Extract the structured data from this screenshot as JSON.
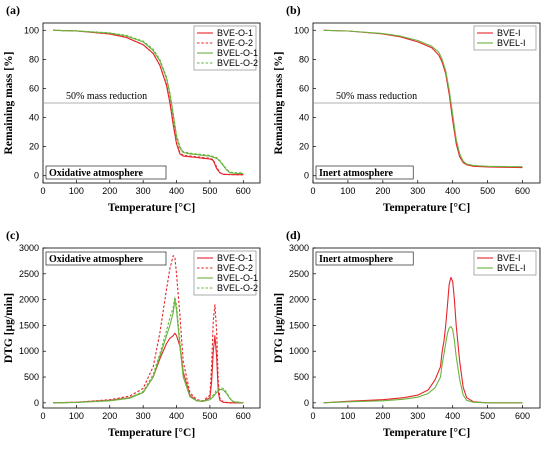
{
  "colors": {
    "red": "#e8242b",
    "green": "#6ab33f",
    "axis": "#000000",
    "refline": "#999999"
  },
  "chart_data": [
    {
      "type": "line",
      "panel_label": "(a)",
      "xlabel": "Temperature [°C]",
      "ylabel": "Remaining mass [%]",
      "xlim": [
        0,
        650
      ],
      "ylim": [
        -5,
        105
      ],
      "xticks": [
        0,
        100,
        200,
        300,
        400,
        500,
        600
      ],
      "yticks": [
        0,
        20,
        40,
        60,
        80,
        100
      ],
      "grid": false,
      "legend_position": "top-right",
      "box_label": "Oxidative atmosphere",
      "hline": {
        "y": 50,
        "label": "50% mass reduction"
      },
      "series": [
        {
          "name": "BVE-O-1",
          "color": "red",
          "dash": "solid",
          "x": [
            30,
            100,
            200,
            250,
            300,
            330,
            350,
            370,
            380,
            390,
            400,
            410,
            420,
            440,
            460,
            480,
            500,
            510,
            520,
            530,
            540,
            560,
            580,
            600
          ],
          "y": [
            100,
            99.6,
            97.5,
            95,
            90,
            84,
            76,
            62,
            50,
            35,
            22,
            15,
            13.5,
            13,
            12.5,
            12,
            11.5,
            10.5,
            5,
            2,
            1,
            0.8,
            0.7,
            0.7
          ]
        },
        {
          "name": "BVE-O-2",
          "color": "red",
          "dash": "dashed",
          "x": [
            30,
            100,
            200,
            250,
            300,
            330,
            350,
            370,
            380,
            390,
            400,
            410,
            420,
            440,
            460,
            480,
            500,
            510,
            520,
            530,
            540,
            560,
            580,
            600
          ],
          "y": [
            100,
            99.6,
            97.5,
            95,
            90,
            84,
            76,
            63,
            51,
            37,
            23,
            16,
            14,
            13.5,
            13,
            12.5,
            12,
            11,
            6,
            2,
            1,
            0.8,
            0.7,
            0.7
          ]
        },
        {
          "name": "BVEL-O-1",
          "color": "green",
          "dash": "solid",
          "x": [
            30,
            100,
            200,
            250,
            300,
            330,
            350,
            370,
            380,
            390,
            400,
            410,
            420,
            440,
            460,
            480,
            500,
            520,
            530,
            540,
            550,
            560,
            580,
            600
          ],
          "y": [
            100,
            99.6,
            98,
            96,
            92,
            86,
            79,
            67,
            56,
            42,
            27,
            19,
            16,
            15,
            14.5,
            14,
            13.5,
            12,
            10,
            7,
            4,
            2,
            1.5,
            1.5
          ]
        },
        {
          "name": "BVEL-O-2",
          "color": "green",
          "dash": "dashed",
          "x": [
            30,
            100,
            200,
            250,
            300,
            330,
            350,
            370,
            380,
            390,
            400,
            410,
            420,
            440,
            460,
            480,
            500,
            520,
            530,
            540,
            550,
            560,
            580,
            600
          ],
          "y": [
            100,
            99.6,
            98.2,
            96.5,
            92.5,
            87,
            80,
            68,
            57,
            43,
            28,
            20,
            16.5,
            15.5,
            15,
            14.5,
            14,
            12.5,
            10.5,
            7.5,
            4.5,
            2.5,
            2,
            2
          ]
        }
      ]
    },
    {
      "type": "line",
      "panel_label": "(b)",
      "xlabel": "Temperature [°C]",
      "ylabel": "Remaining mass [%]",
      "xlim": [
        0,
        650
      ],
      "ylim": [
        -5,
        105
      ],
      "xticks": [
        0,
        100,
        200,
        300,
        400,
        500,
        600
      ],
      "yticks": [
        0,
        20,
        40,
        60,
        80,
        100
      ],
      "grid": false,
      "legend_position": "top-right",
      "box_label": "Inert atmosphere",
      "hline": {
        "y": 50,
        "label": "50% mass reduction"
      },
      "series": [
        {
          "name": "BVE-I",
          "color": "red",
          "dash": "solid",
          "x": [
            30,
            100,
            200,
            250,
            300,
            340,
            360,
            370,
            380,
            390,
            400,
            410,
            420,
            430,
            440,
            460,
            500,
            550,
            600
          ],
          "y": [
            100,
            99.5,
            97.5,
            95.5,
            92,
            88,
            83,
            78,
            70,
            56,
            38,
            22,
            13,
            9,
            7.5,
            6.5,
            6,
            5.8,
            5.6
          ]
        },
        {
          "name": "BVEL-I",
          "color": "green",
          "dash": "solid",
          "x": [
            30,
            100,
            200,
            250,
            300,
            340,
            360,
            370,
            380,
            390,
            400,
            410,
            420,
            430,
            440,
            460,
            500,
            550,
            600
          ],
          "y": [
            100,
            99.5,
            97.8,
            96,
            93,
            89,
            85,
            80,
            72,
            59,
            42,
            25,
            15,
            10,
            8,
            7,
            6.5,
            6.3,
            6.2
          ]
        }
      ]
    },
    {
      "type": "line",
      "panel_label": "(c)",
      "xlabel": "Temperature [°C]",
      "ylabel": "DTG [µg/min]",
      "xlim": [
        0,
        650
      ],
      "ylim": [
        -100,
        3000
      ],
      "xticks": [
        0,
        100,
        200,
        300,
        400,
        500,
        600
      ],
      "yticks": [
        0,
        500,
        1000,
        1500,
        2000,
        2500,
        3000
      ],
      "grid": false,
      "legend_position": "top-right",
      "box_label": "Oxidative atmosphere",
      "series": [
        {
          "name": "BVE-O-1",
          "color": "red",
          "dash": "solid",
          "x": [
            30,
            100,
            200,
            260,
            300,
            330,
            350,
            370,
            380,
            390,
            395,
            400,
            410,
            420,
            440,
            460,
            480,
            500,
            505,
            510,
            515,
            520,
            525,
            530,
            540,
            560,
            600
          ],
          "y": [
            0,
            10,
            50,
            100,
            200,
            500,
            850,
            1150,
            1250,
            1300,
            1350,
            1300,
            1100,
            600,
            150,
            40,
            30,
            100,
            400,
            1000,
            1300,
            900,
            200,
            50,
            10,
            0,
            0
          ]
        },
        {
          "name": "BVE-O-2",
          "color": "red",
          "dash": "dashed",
          "x": [
            30,
            100,
            200,
            260,
            300,
            330,
            350,
            370,
            380,
            390,
            395,
            400,
            410,
            420,
            440,
            460,
            480,
            500,
            505,
            510,
            515,
            520,
            525,
            530,
            540,
            560,
            600
          ],
          "y": [
            0,
            12,
            60,
            130,
            280,
            700,
            1350,
            2200,
            2600,
            2850,
            2820,
            2500,
            1700,
            800,
            200,
            60,
            40,
            150,
            700,
            1600,
            1900,
            1400,
            400,
            80,
            15,
            0,
            0
          ]
        },
        {
          "name": "BVEL-O-1",
          "color": "green",
          "dash": "solid",
          "x": [
            30,
            100,
            200,
            260,
            300,
            330,
            350,
            370,
            380,
            390,
            395,
            400,
            410,
            420,
            440,
            460,
            480,
            500,
            510,
            520,
            530,
            540,
            550,
            560,
            570,
            600
          ],
          "y": [
            0,
            8,
            40,
            90,
            200,
            500,
            900,
            1300,
            1500,
            1750,
            2000,
            1800,
            1100,
            500,
            120,
            40,
            30,
            60,
            120,
            200,
            260,
            250,
            180,
            80,
            20,
            0
          ]
        },
        {
          "name": "BVEL-O-2",
          "color": "green",
          "dash": "dashed",
          "x": [
            30,
            100,
            200,
            260,
            300,
            330,
            350,
            370,
            380,
            390,
            395,
            400,
            410,
            420,
            440,
            460,
            480,
            500,
            510,
            520,
            530,
            540,
            550,
            560,
            570,
            600
          ],
          "y": [
            0,
            9,
            45,
            100,
            220,
            550,
            950,
            1400,
            1650,
            1850,
            2050,
            1900,
            1200,
            550,
            130,
            45,
            35,
            70,
            150,
            250,
            290,
            280,
            200,
            90,
            25,
            0
          ]
        }
      ]
    },
    {
      "type": "line",
      "panel_label": "(d)",
      "xlabel": "Temperature [°C]",
      "ylabel": "DTG [µg/min]",
      "xlim": [
        0,
        650
      ],
      "ylim": [
        -100,
        3000
      ],
      "xticks": [
        0,
        100,
        200,
        300,
        400,
        500,
        600
      ],
      "yticks": [
        0,
        500,
        1000,
        1500,
        2000,
        2500,
        3000
      ],
      "grid": false,
      "legend_position": "top-right",
      "box_label": "Inert atmosphere",
      "series": [
        {
          "name": "BVE-I",
          "color": "red",
          "dash": "solid",
          "x": [
            30,
            100,
            200,
            260,
            300,
            330,
            350,
            365,
            370,
            375,
            380,
            385,
            390,
            395,
            400,
            405,
            410,
            420,
            430,
            440,
            460,
            500,
            600
          ],
          "y": [
            0,
            30,
            60,
            100,
            150,
            250,
            450,
            700,
            1000,
            1200,
            1500,
            1900,
            2300,
            2430,
            2350,
            2000,
            1500,
            800,
            300,
            100,
            20,
            0,
            0
          ]
        },
        {
          "name": "BVEL-I",
          "color": "green",
          "dash": "solid",
          "x": [
            30,
            100,
            200,
            260,
            300,
            330,
            350,
            365,
            370,
            375,
            380,
            385,
            390,
            395,
            400,
            405,
            410,
            420,
            430,
            440,
            460,
            500,
            600
          ],
          "y": [
            0,
            20,
            40,
            70,
            110,
            180,
            300,
            500,
            750,
            950,
            1150,
            1350,
            1450,
            1480,
            1420,
            1200,
            900,
            450,
            150,
            50,
            10,
            0,
            0
          ]
        }
      ]
    }
  ]
}
